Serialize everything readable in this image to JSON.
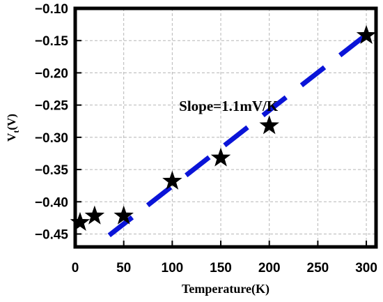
{
  "chart_data": {
    "type": "scatter",
    "xlabel": "Temperature(K)",
    "ylabel_main": "V",
    "ylabel_sub": "t",
    "ylabel_unit": "(V)",
    "xlim": [
      0,
      310
    ],
    "ylim": [
      -0.47,
      -0.1
    ],
    "xticks": [
      0,
      50,
      100,
      150,
      200,
      250,
      300
    ],
    "yticks": [
      -0.45,
      -0.4,
      -0.35,
      -0.3,
      -0.25,
      -0.2,
      -0.15,
      -0.1
    ],
    "xtick_labels": [
      "0",
      "50",
      "100",
      "150",
      "200",
      "250",
      "300"
    ],
    "ytick_labels": [
      "−0.45",
      "−0.40",
      "−0.35",
      "−0.30",
      "−0.25",
      "−0.20",
      "−0.15",
      "−0.10"
    ],
    "grid": true,
    "series": [
      {
        "marker": "star",
        "color": "#000000",
        "x": [
          5,
          20,
          50,
          100,
          150,
          200,
          300
        ],
        "y": [
          -0.432,
          -0.422,
          -0.422,
          -0.368,
          -0.332,
          -0.282,
          -0.142
        ]
      }
    ],
    "fit_line": {
      "style": "dashed",
      "color": "#0a14d8",
      "x": [
        35,
        305
      ],
      "y": [
        -0.452,
        -0.135
      ]
    },
    "annotations": [
      {
        "text": "Slope=1.1mV/K",
        "x": 158,
        "y": -0.259
      }
    ]
  }
}
